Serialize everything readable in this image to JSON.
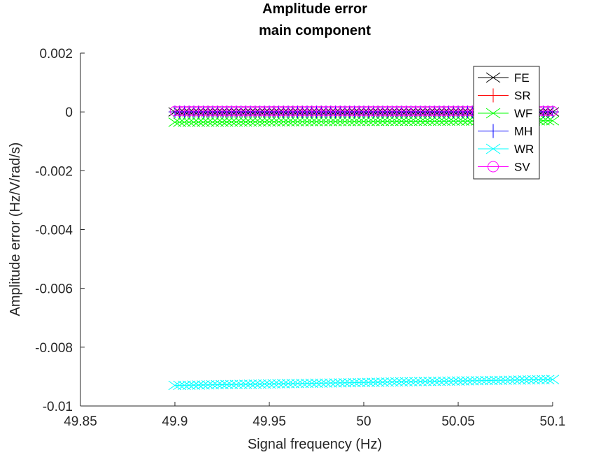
{
  "chart_data": {
    "type": "line",
    "title": "Amplitude error",
    "subtitle": "main component",
    "xlabel": "Signal frequency (Hz)",
    "ylabel": "Amplitude error (Hz/V/rad/s)",
    "xlim": [
      49.85,
      50.1
    ],
    "ylim": [
      -0.01,
      0.002
    ],
    "x_ticks": [
      49.85,
      49.9,
      49.95,
      50,
      50.05,
      50.1
    ],
    "x_tick_labels": [
      "49.85",
      "49.9",
      "49.95",
      "50",
      "50.05",
      "50.1"
    ],
    "y_ticks": [
      0.002,
      0,
      -0.002,
      -0.004,
      -0.006,
      -0.008,
      -0.01
    ],
    "y_tick_labels": [
      "0.002",
      "0",
      "-0.002",
      "-0.004",
      "-0.006",
      "-0.008",
      "-0.01"
    ],
    "legend_position": "top-right",
    "grid": false,
    "x": [
      49.9,
      50.1
    ],
    "series": [
      {
        "name": "FE",
        "color": "#000000",
        "marker": "x",
        "values": [
          0.0,
          0.0
        ]
      },
      {
        "name": "SR",
        "color": "#ff0000",
        "marker": "+",
        "values": [
          0.0,
          0.0
        ]
      },
      {
        "name": "WF",
        "color": "#00ff00",
        "marker": "x",
        "values": [
          -0.00035,
          -0.0003
        ]
      },
      {
        "name": "MH",
        "color": "#0000ff",
        "marker": "+",
        "values": [
          0.0,
          0.0
        ]
      },
      {
        "name": "WR",
        "color": "#00ffff",
        "marker": "x",
        "values": [
          -0.0093,
          -0.0091
        ]
      },
      {
        "name": "SV",
        "color": "#ff00ff",
        "marker": "o",
        "values": [
          3e-05,
          3e-05
        ]
      }
    ]
  }
}
